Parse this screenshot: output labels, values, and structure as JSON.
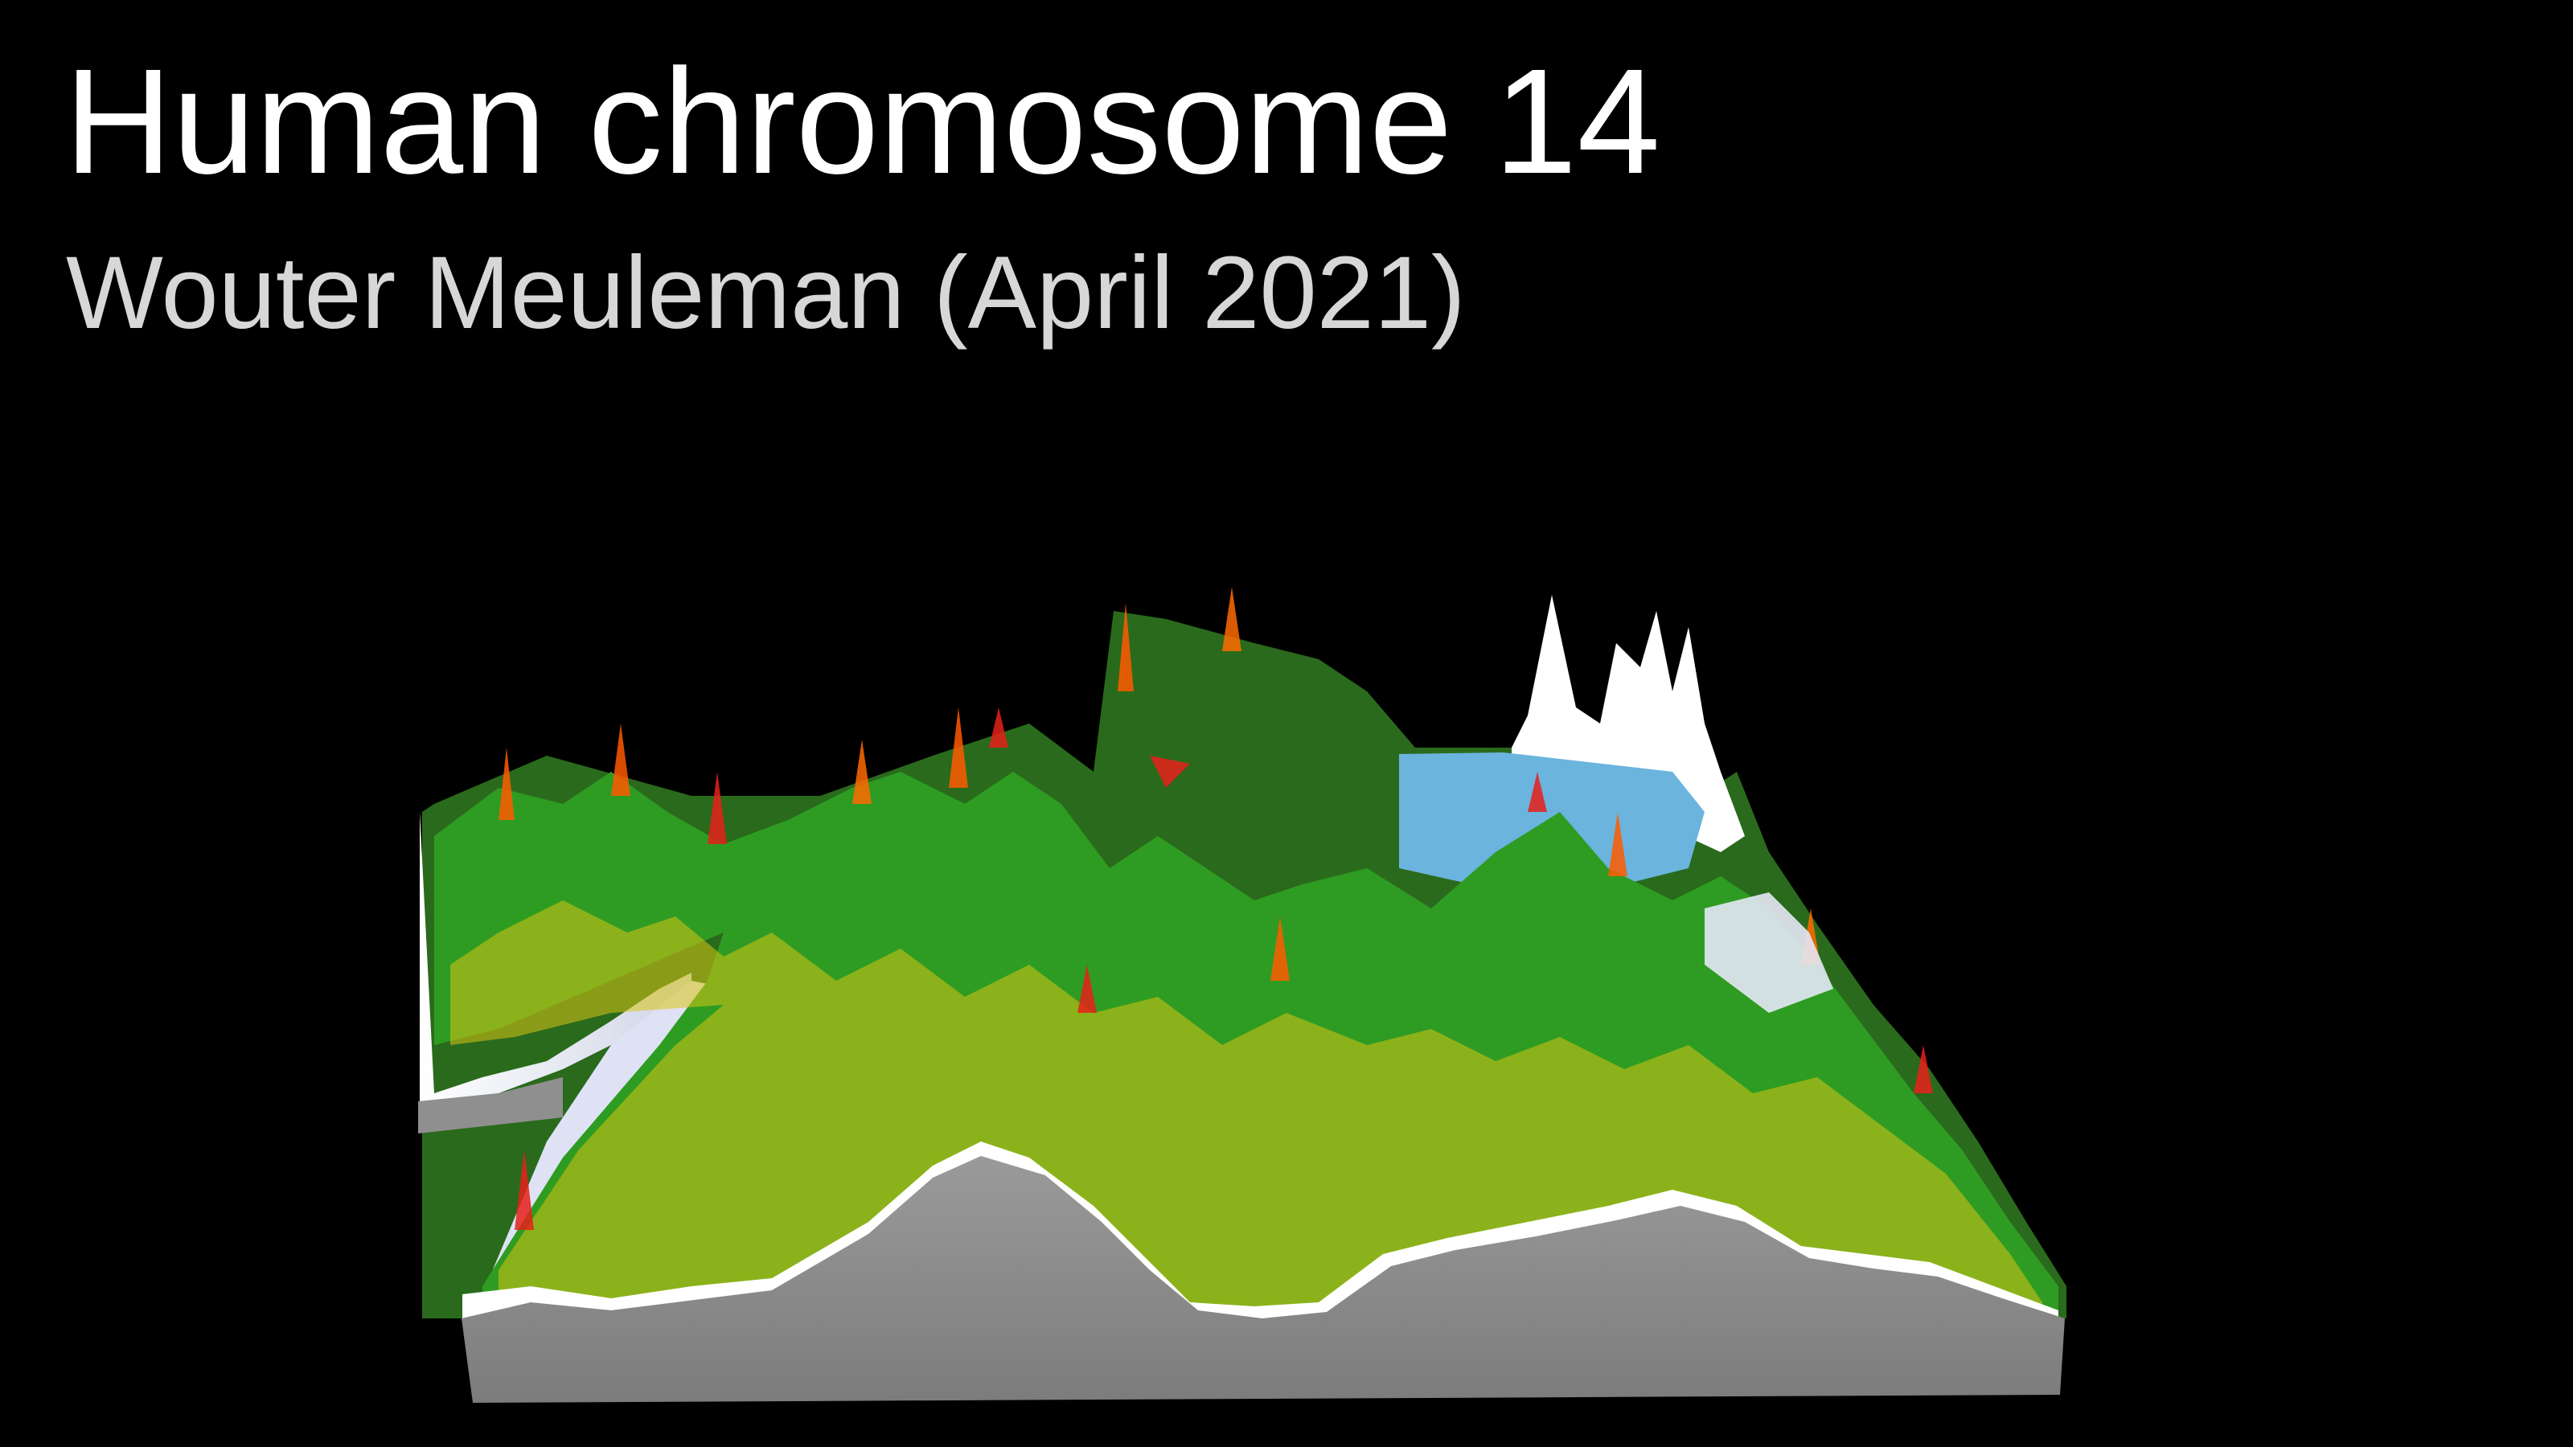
{
  "title": "Human chromosome 14",
  "subtitle": "Wouter Meuleman (April 2021)",
  "colors": {
    "background": "#000000",
    "title": "#ffffff",
    "subtitle": "#d7d7d7",
    "base": "#8c8c8c",
    "plateau": "#6ab4de",
    "surface_palette": [
      "#1f9a1f",
      "#37b22a",
      "#f5e21a",
      "#ff6a00",
      "#e6201a",
      "#ffffff",
      "#c9cdf0",
      "#9aa3e0",
      "#e8d36a"
    ]
  }
}
